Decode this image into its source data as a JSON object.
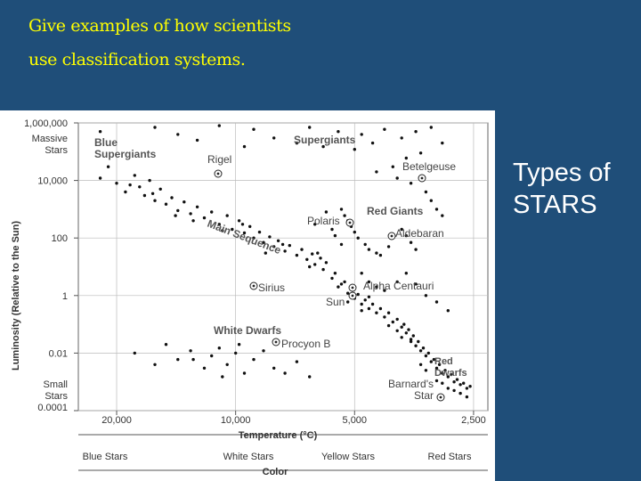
{
  "slide": {
    "title_line1": "Give examples of how scientists",
    "title_line2": "use classification systems.",
    "side_line1": "Types of",
    "side_line2": "STARS",
    "background_color": "#1f4e79",
    "title_color": "#ffff00"
  },
  "chart_data": {
    "type": "scatter",
    "title": "",
    "xlabel": "Temperature (°C)",
    "ylabel": "Luminosity (Relative to the Sun)",
    "x_scale": "log-reversed",
    "xlim": [
      25000,
      2300
    ],
    "y_scale": "log",
    "ylim": [
      0.0001,
      1000000
    ],
    "grid": true,
    "x_ticks": [
      {
        "value": 20000,
        "label": "20,000"
      },
      {
        "value": 10000,
        "label": "10,000"
      },
      {
        "value": 5000,
        "label": "5,000"
      },
      {
        "value": 2500,
        "label": "2,500"
      }
    ],
    "y_ticks": [
      {
        "value": 1000000,
        "label": "1,000,000"
      },
      {
        "value": 10000,
        "label": "10,000"
      },
      {
        "value": 100,
        "label": "100"
      },
      {
        "value": 1,
        "label": "1"
      },
      {
        "value": 0.01,
        "label": "0.01"
      },
      {
        "value": 0.0001,
        "label": "0.0001"
      }
    ],
    "y_extra_labels": {
      "top": [
        "Massive",
        "Stars"
      ],
      "bottom": [
        "Small",
        "Stars"
      ]
    },
    "color_axis": {
      "label": "Color",
      "categories": [
        "Blue Stars",
        "White Stars",
        "Yellow Stars",
        "Red Stars"
      ]
    },
    "groups": [
      {
        "label": "Blue Supergiants",
        "lines": [
          "Blue",
          "Supergiants"
        ]
      },
      {
        "label": "Supergiants",
        "lines": [
          "Supergiants"
        ]
      },
      {
        "label": "Red Giants",
        "lines": [
          "Red Giants"
        ]
      },
      {
        "label": "Main Sequence",
        "lines": [
          "Main Sequence"
        ]
      },
      {
        "label": "White Dwarfs",
        "lines": [
          "White Dwarfs"
        ]
      },
      {
        "label": "Red Dwarfs",
        "lines": [
          "Red",
          "Dwarfs"
        ]
      }
    ],
    "named_stars": [
      {
        "name": "Rigel",
        "temp": 12000,
        "lum": 40000,
        "label_lines": [
          "Rigel"
        ]
      },
      {
        "name": "Betelgeuse",
        "temp": 3300,
        "lum": 40000,
        "label_lines": [
          "Betelgeuse"
        ]
      },
      {
        "name": "Polaris",
        "temp": 5800,
        "lum": 500,
        "label_lines": [
          "Polaris"
        ]
      },
      {
        "name": "Aldebaran",
        "temp": 4200,
        "lum": 130,
        "label_lines": [
          "Aldebaran"
        ]
      },
      {
        "name": "Sirius",
        "temp": 10000,
        "lum": 22,
        "label_lines": [
          "Sirius"
        ]
      },
      {
        "name": "Alpha Centauri",
        "temp": 5800,
        "lum": 1.5,
        "label_lines": [
          "Alpha Centauri"
        ]
      },
      {
        "name": "Sun",
        "temp": 5800,
        "lum": 1,
        "label_lines": [
          "Sun"
        ]
      },
      {
        "name": "Procyon B",
        "temp": 8800,
        "lum": 0.01,
        "label_lines": [
          "Procyon B"
        ]
      },
      {
        "name": "Barnard's Star",
        "temp": 3200,
        "lum": 0.0004,
        "label_lines": [
          "Barnard's",
          "Star"
        ]
      }
    ],
    "series": [
      {
        "name": "Main Sequence",
        "points": [
          [
            22000,
            12000
          ],
          [
            21000,
            30000
          ],
          [
            20000,
            8000
          ],
          [
            19000,
            4000
          ],
          [
            18000,
            15000
          ],
          [
            17500,
            6000
          ],
          [
            17000,
            3000
          ],
          [
            16500,
            10000
          ],
          [
            16000,
            2000
          ],
          [
            15500,
            5000
          ],
          [
            15000,
            1500
          ],
          [
            14500,
            2500
          ],
          [
            14000,
            900
          ],
          [
            13500,
            1800
          ],
          [
            13000,
            700
          ],
          [
            12500,
            1200
          ],
          [
            12000,
            500
          ],
          [
            11500,
            800
          ],
          [
            11000,
            300
          ],
          [
            10500,
            600
          ],
          [
            10200,
            200
          ],
          [
            9800,
            400
          ],
          [
            9500,
            150
          ],
          [
            9200,
            250
          ],
          [
            9000,
            100
          ],
          [
            8700,
            160
          ],
          [
            8500,
            70
          ],
          [
            8200,
            110
          ],
          [
            8000,
            50
          ],
          [
            7800,
            80
          ],
          [
            7500,
            35
          ],
          [
            7300,
            55
          ],
          [
            7000,
            25
          ],
          [
            6800,
            40
          ],
          [
            6600,
            18
          ],
          [
            6400,
            28
          ],
          [
            6300,
            12
          ],
          [
            6100,
            20
          ],
          [
            6000,
            8
          ],
          [
            5900,
            14
          ],
          [
            5700,
            4
          ],
          [
            5600,
            6
          ],
          [
            5500,
            2
          ],
          [
            5300,
            3
          ],
          [
            5200,
            1.2
          ],
          [
            5100,
            1.8
          ],
          [
            5000,
            0.8
          ],
          [
            4900,
            1.1
          ],
          [
            4800,
            0.5
          ],
          [
            4700,
            0.7
          ],
          [
            4600,
            0.35
          ],
          [
            4500,
            0.5
          ],
          [
            4400,
            0.25
          ],
          [
            4300,
            0.35
          ],
          [
            4200,
            0.18
          ],
          [
            4100,
            0.25
          ],
          [
            4000,
            0.12
          ],
          [
            3900,
            0.15
          ],
          [
            3800,
            0.08
          ],
          [
            3750,
            0.1
          ],
          [
            3700,
            0.05
          ],
          [
            3650,
            0.065
          ],
          [
            3600,
            0.03
          ],
          [
            3550,
            0.04
          ],
          [
            3500,
            0.018
          ],
          [
            3450,
            0.025
          ],
          [
            3400,
            0.012
          ],
          [
            3350,
            0.015
          ],
          [
            3300,
            0.008
          ],
          [
            3250,
            0.01
          ],
          [
            3200,
            0.005
          ],
          [
            3150,
            0.006
          ],
          [
            3100,
            0.003
          ],
          [
            3050,
            0.004
          ],
          [
            3000,
            0.002
          ],
          [
            2950,
            0.0025
          ],
          [
            2900,
            0.0015
          ],
          [
            2850,
            0.0018
          ],
          [
            2800,
            0.001
          ],
          [
            2750,
            0.0012
          ],
          [
            2700,
            0.0008
          ],
          [
            2650,
            0.0009
          ],
          [
            2600,
            0.0006
          ],
          [
            2550,
            0.0007
          ],
          [
            3000,
            0.0009
          ],
          [
            2900,
            0.0006
          ],
          [
            3100,
            0.0011
          ],
          [
            2800,
            0.0005
          ],
          [
            3300,
            0.0025
          ],
          [
            3400,
            0.004
          ],
          [
            4600,
            0.9
          ],
          [
            4800,
            0.3
          ],
          [
            5200,
            0.6
          ],
          [
            5400,
            2.5
          ],
          [
            3900,
            0.06
          ],
          [
            4100,
            0.09
          ],
          [
            3600,
            0.025
          ],
          [
            3800,
            0.035
          ],
          [
            6200,
            30
          ],
          [
            6500,
            10
          ],
          [
            7600,
            60
          ],
          [
            8400,
            30
          ],
          [
            9600,
            300
          ],
          [
            10800,
            180
          ],
          [
            12800,
            400
          ],
          [
            14200,
            600
          ],
          [
            16200,
            3500
          ],
          [
            18500,
            7000
          ],
          [
            2700,
            0.0004
          ],
          [
            2600,
            0.0003
          ]
        ]
      },
      {
        "name": "Giants and Supergiants",
        "points": [
          [
            22000,
            500000
          ],
          [
            16000,
            700000
          ],
          [
            14000,
            400000
          ],
          [
            11000,
            800000
          ],
          [
            9000,
            600000
          ],
          [
            8000,
            300000
          ],
          [
            6500,
            700000
          ],
          [
            5500,
            500000
          ],
          [
            4800,
            400000
          ],
          [
            4200,
            600000
          ],
          [
            3800,
            300000
          ],
          [
            3500,
            500000
          ],
          [
            3200,
            700000
          ],
          [
            3000,
            200000
          ],
          [
            6000,
            150000
          ],
          [
            5000,
            120000
          ],
          [
            4500,
            200000
          ],
          [
            7000,
            200000
          ],
          [
            9500,
            150000
          ],
          [
            12500,
            250000
          ],
          [
            3700,
            60000
          ],
          [
            3400,
            90000
          ],
          [
            4000,
            30000
          ],
          [
            4400,
            20000
          ],
          [
            3900,
            12000
          ],
          [
            3600,
            8000
          ],
          [
            3300,
            4000
          ],
          [
            3200,
            2000
          ],
          [
            3100,
            1000
          ],
          [
            3000,
            600
          ],
          [
            5400,
            1000
          ],
          [
            5300,
            600
          ],
          [
            5200,
            400
          ],
          [
            5100,
            250
          ],
          [
            5000,
            160
          ],
          [
            4900,
            100
          ],
          [
            4700,
            60
          ],
          [
            4600,
            40
          ],
          [
            4400,
            30
          ],
          [
            4300,
            25
          ],
          [
            4100,
            50
          ],
          [
            3800,
            200
          ],
          [
            3700,
            120
          ],
          [
            3600,
            70
          ],
          [
            3500,
            40
          ],
          [
            5900,
            800
          ],
          [
            6300,
            300
          ],
          [
            5700,
            200
          ],
          [
            5600,
            120
          ],
          [
            5400,
            60
          ],
          [
            4800,
            6
          ],
          [
            4600,
            3
          ],
          [
            4400,
            2
          ],
          [
            4200,
            1.5
          ],
          [
            3900,
            3
          ],
          [
            3700,
            6
          ],
          [
            3500,
            2.5
          ],
          [
            3300,
            1
          ],
          [
            3100,
            0.6
          ],
          [
            2900,
            0.3
          ]
        ]
      },
      {
        "name": "White Dwarfs",
        "points": [
          [
            18000,
            0.01
          ],
          [
            16000,
            0.004
          ],
          [
            15000,
            0.02
          ],
          [
            14000,
            0.006
          ],
          [
            13000,
            0.012
          ],
          [
            12000,
            0.003
          ],
          [
            11500,
            0.008
          ],
          [
            11000,
            0.015
          ],
          [
            10500,
            0.004
          ],
          [
            10000,
            0.01
          ],
          [
            9500,
            0.002
          ],
          [
            9000,
            0.006
          ],
          [
            8500,
            0.012
          ],
          [
            8000,
            0.003
          ],
          [
            7500,
            0.002
          ],
          [
            7000,
            0.005
          ],
          [
            6500,
            0.0015
          ],
          [
            9800,
            0.02
          ],
          [
            12800,
            0.006
          ],
          [
            10800,
            0.0015
          ]
        ]
      }
    ]
  }
}
